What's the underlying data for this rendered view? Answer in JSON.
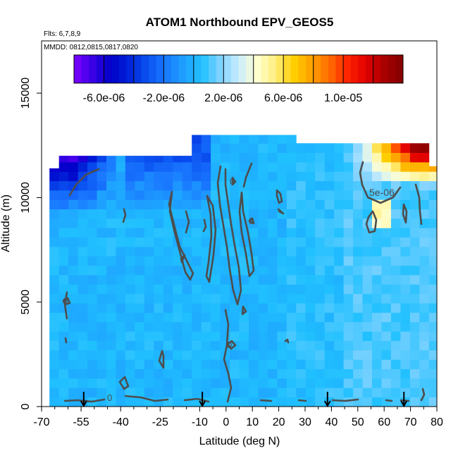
{
  "chart_data": {
    "type": "heatmap",
    "title": "ATOM1 Northbound EPV_GEOS5",
    "subtitle_flights": "Flts: 6,7,8,9",
    "subtitle_dates": "MMDD: 0812,0815,0817,0820",
    "xlabel": "Latitude (deg N)",
    "ylabel": "Altitude (m)",
    "xlim": [
      -70,
      80
    ],
    "ylim": [
      0,
      17500
    ],
    "x_ticks": [
      -70,
      -55,
      -40,
      -25,
      -10,
      0,
      10,
      20,
      30,
      40,
      50,
      60,
      70,
      80
    ],
    "x_tick_labels": [
      "-70",
      "-55",
      "-40",
      "-25",
      "-10",
      "0",
      "10",
      "20",
      "30",
      "40",
      "50",
      "60",
      "70",
      "80"
    ],
    "y_ticks": [
      0,
      5000,
      10000,
      15000
    ],
    "y_tick_labels": [
      "0",
      "5000",
      "10000",
      "15000"
    ],
    "colorbar": {
      "range": [
        -8e-06,
        1.4e-05
      ],
      "tick_values": [
        -6e-06,
        -2e-06,
        2e-06,
        6e-06,
        1e-05
      ],
      "tick_labels": [
        "-6.0e-06",
        "-2.0e-06",
        "2.0e-06",
        "6.0e-06",
        "1.0e-05"
      ],
      "colors": [
        "#7c00ff",
        "#3a00e6",
        "#0000c8",
        "#0022d8",
        "#0a50f0",
        "#1a78ff",
        "#1ea0ff",
        "#20c0ff",
        "#7fd2ff",
        "#c8ecff",
        "#ffffd0",
        "#ffee80",
        "#ffd000",
        "#ffa000",
        "#ff6a00",
        "#ff2000",
        "#e00000",
        "#a80000",
        "#800000"
      ]
    },
    "contour_labels": [
      "0",
      "0",
      "0",
      "0",
      "0",
      "5e-06"
    ],
    "flight_markers_latitude": [
      -54,
      -9,
      38.5,
      67.5
    ]
  }
}
